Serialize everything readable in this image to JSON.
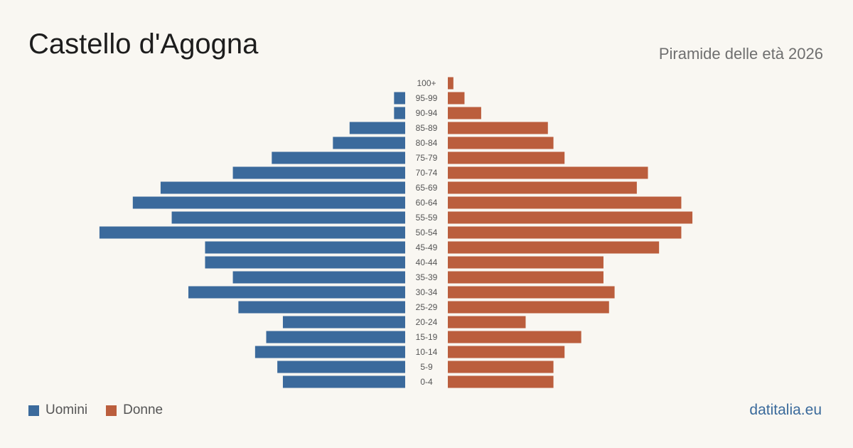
{
  "header": {
    "title": "Castello d'Agogna",
    "subtitle": "Piramide delle età 2026"
  },
  "legend": {
    "men_label": "Uomini",
    "women_label": "Donne"
  },
  "source": "datitalia.eu",
  "colors": {
    "men": "#3b6a9c",
    "women": "#bb5e3d",
    "background": "#f9f7f2"
  },
  "chart_data": {
    "type": "bar",
    "orientation": "horizontal-pyramid",
    "title": "Piramide delle età 2026",
    "categories": [
      "100+",
      "95-99",
      "90-94",
      "85-89",
      "80-84",
      "75-79",
      "70-74",
      "65-69",
      "60-64",
      "55-59",
      "50-54",
      "45-49",
      "40-44",
      "35-39",
      "30-34",
      "25-29",
      "20-24",
      "15-19",
      "10-14",
      "5-9",
      "0-4"
    ],
    "series": [
      {
        "name": "Uomini",
        "values": [
          0,
          2,
          2,
          10,
          13,
          24,
          31,
          44,
          49,
          42,
          55,
          36,
          36,
          31,
          39,
          30,
          22,
          25,
          27,
          23,
          22
        ]
      },
      {
        "name": "Donne",
        "values": [
          1,
          3,
          6,
          18,
          19,
          21,
          36,
          34,
          42,
          44,
          42,
          38,
          28,
          28,
          30,
          29,
          14,
          24,
          21,
          19,
          19
        ]
      }
    ],
    "legend_position": "bottom-left",
    "grid": false
  }
}
